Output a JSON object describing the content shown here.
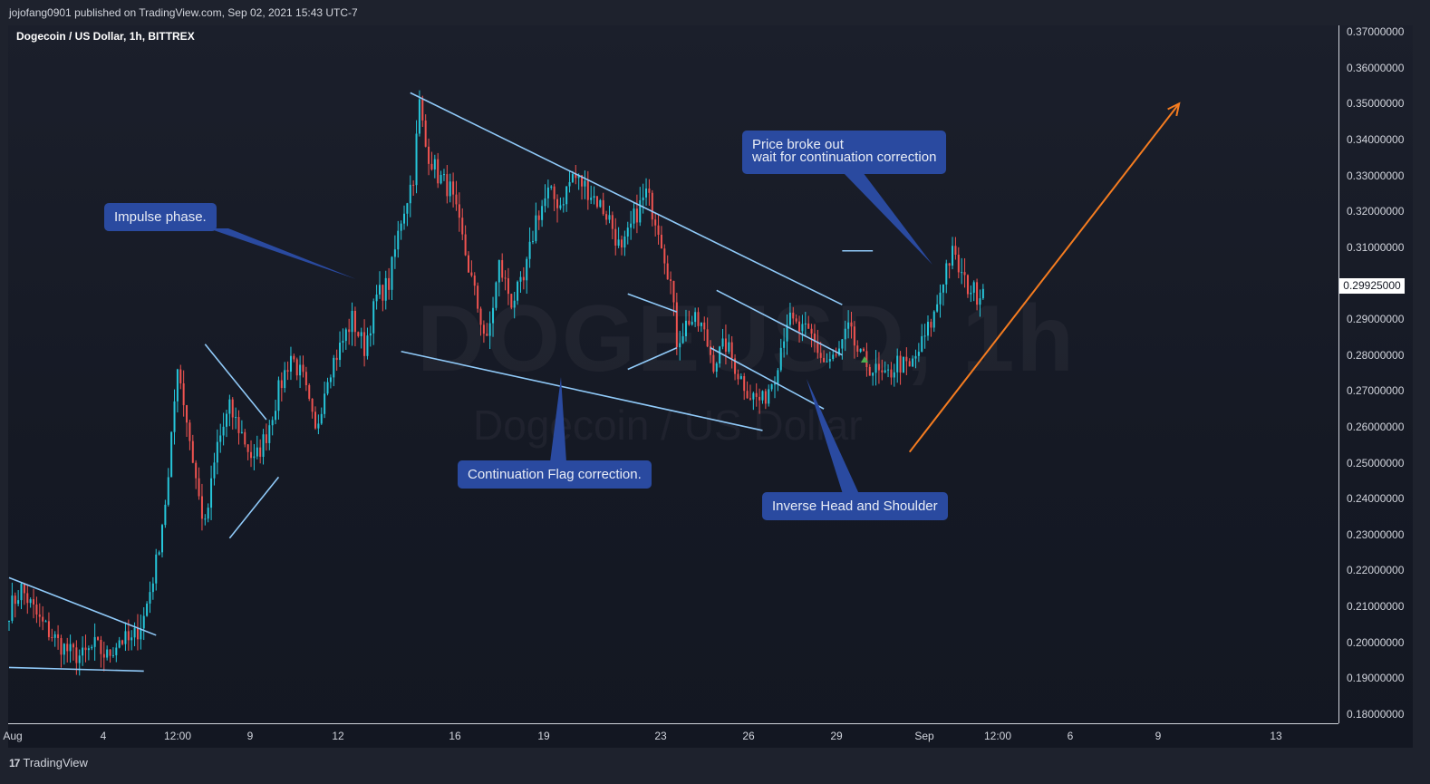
{
  "header": {
    "published": "jojofang0901 published on TradingView.com, Sep 02, 2021 15:43 UTC-7"
  },
  "symbol_label": "Dogecoin / US Dollar, 1h, BITTREX",
  "watermark": {
    "symbol": "DOGEUSD, 1h",
    "description": "Dogecoin / US Dollar"
  },
  "annotations": {
    "impulse": "Impulse phase.",
    "flag": "Continuation Flag correction.",
    "ihs": "Inverse Head and Shoulder",
    "breakout_line1": "Price broke out",
    "breakout_line2": "wait for continuation correction"
  },
  "last_price": "0.29925000",
  "footer": {
    "brand": "TradingView"
  },
  "colors": {
    "up": "#26c6da",
    "down": "#ef5350",
    "trendline": "#90caf9",
    "projection": "#f57c20",
    "callout_bg": "#2a4aa0"
  },
  "chart_data": {
    "type": "candlestick",
    "symbol": "DOGEUSD",
    "timeframe": "1h",
    "exchange": "BITTREX",
    "yaxis": {
      "ticks": [
        "0.37000000",
        "0.36000000",
        "0.35000000",
        "0.34000000",
        "0.33000000",
        "0.32000000",
        "0.31000000",
        "0.30000000",
        "0.29000000",
        "0.28000000",
        "0.27000000",
        "0.26000000",
        "0.25000000",
        "0.24000000",
        "0.23000000",
        "0.22000000",
        "0.21000000",
        "0.20000000",
        "0.19000000",
        "0.18000000"
      ],
      "range": [
        0.178,
        0.372
      ]
    },
    "xaxis": {
      "ticks": [
        "Aug",
        "4",
        "12:00",
        "9",
        "12",
        "16",
        "19",
        "23",
        "26",
        "29",
        "Sep",
        "12:00",
        "6",
        "9",
        "13"
      ]
    },
    "price_path": [
      [
        0,
        0.209
      ],
      [
        4,
        0.215
      ],
      [
        10,
        0.206
      ],
      [
        16,
        0.2
      ],
      [
        20,
        0.197
      ],
      [
        24,
        0.196
      ],
      [
        28,
        0.199
      ],
      [
        32,
        0.196
      ],
      [
        36,
        0.201
      ],
      [
        40,
        0.2
      ],
      [
        44,
        0.207
      ],
      [
        48,
        0.222
      ],
      [
        52,
        0.245
      ],
      [
        55,
        0.278
      ],
      [
        58,
        0.262
      ],
      [
        62,
        0.24
      ],
      [
        64,
        0.232
      ],
      [
        68,
        0.255
      ],
      [
        72,
        0.265
      ],
      [
        76,
        0.258
      ],
      [
        80,
        0.25
      ],
      [
        84,
        0.258
      ],
      [
        88,
        0.27
      ],
      [
        92,
        0.28
      ],
      [
        96,
        0.273
      ],
      [
        100,
        0.258
      ],
      [
        104,
        0.275
      ],
      [
        108,
        0.282
      ],
      [
        112,
        0.29
      ],
      [
        116,
        0.282
      ],
      [
        120,
        0.296
      ],
      [
        124,
        0.3
      ],
      [
        128,
        0.318
      ],
      [
        132,
        0.33
      ],
      [
        134,
        0.35
      ],
      [
        136,
        0.338
      ],
      [
        140,
        0.33
      ],
      [
        144,
        0.326
      ],
      [
        148,
        0.312
      ],
      [
        152,
        0.297
      ],
      [
        156,
        0.283
      ],
      [
        160,
        0.305
      ],
      [
        164,
        0.295
      ],
      [
        168,
        0.3
      ],
      [
        172,
        0.318
      ],
      [
        176,
        0.325
      ],
      [
        180,
        0.322
      ],
      [
        184,
        0.33
      ],
      [
        188,
        0.327
      ],
      [
        192,
        0.323
      ],
      [
        196,
        0.318
      ],
      [
        200,
        0.308
      ],
      [
        204,
        0.318
      ],
      [
        208,
        0.325
      ],
      [
        212,
        0.316
      ],
      [
        216,
        0.3
      ],
      [
        218,
        0.284
      ],
      [
        222,
        0.29
      ],
      [
        226,
        0.288
      ],
      [
        230,
        0.278
      ],
      [
        234,
        0.283
      ],
      [
        238,
        0.275
      ],
      [
        242,
        0.269
      ],
      [
        246,
        0.267
      ],
      [
        250,
        0.275
      ],
      [
        254,
        0.29
      ],
      [
        258,
        0.287
      ],
      [
        262,
        0.285
      ],
      [
        266,
        0.278
      ],
      [
        270,
        0.279
      ],
      [
        274,
        0.287
      ],
      [
        278,
        0.279
      ],
      [
        282,
        0.276
      ],
      [
        286,
        0.273
      ],
      [
        290,
        0.278
      ],
      [
        294,
        0.276
      ],
      [
        298,
        0.283
      ],
      [
        302,
        0.291
      ],
      [
        306,
        0.305
      ],
      [
        308,
        0.308
      ],
      [
        312,
        0.3
      ],
      [
        316,
        0.297
      ],
      [
        318,
        0.299
      ]
    ],
    "trendlines": [
      {
        "from": [
          0,
          0.218
        ],
        "to": [
          48,
          0.202
        ]
      },
      {
        "from": [
          0,
          0.193
        ],
        "to": [
          44,
          0.192
        ]
      },
      {
        "from": [
          64,
          0.283
        ],
        "to": [
          84,
          0.262
        ]
      },
      {
        "from": [
          72,
          0.229
        ],
        "to": [
          88,
          0.246
        ]
      },
      {
        "from": [
          131,
          0.353
        ],
        "to": [
          272,
          0.294
        ]
      },
      {
        "from": [
          128,
          0.281
        ],
        "to": [
          246,
          0.259
        ]
      },
      {
        "from": [
          202,
          0.297
        ],
        "to": [
          218,
          0.292
        ]
      },
      {
        "from": [
          202,
          0.276
        ],
        "to": [
          218,
          0.282
        ]
      },
      {
        "from": [
          231,
          0.298
        ],
        "to": [
          272,
          0.28
        ]
      },
      {
        "from": [
          229,
          0.282
        ],
        "to": [
          266,
          0.265
        ]
      },
      {
        "from": [
          272,
          0.309
        ],
        "to": [
          282,
          0.309
        ]
      }
    ],
    "projection": {
      "from": [
        294,
        0.253
      ],
      "to": [
        382,
        0.35
      ]
    }
  }
}
